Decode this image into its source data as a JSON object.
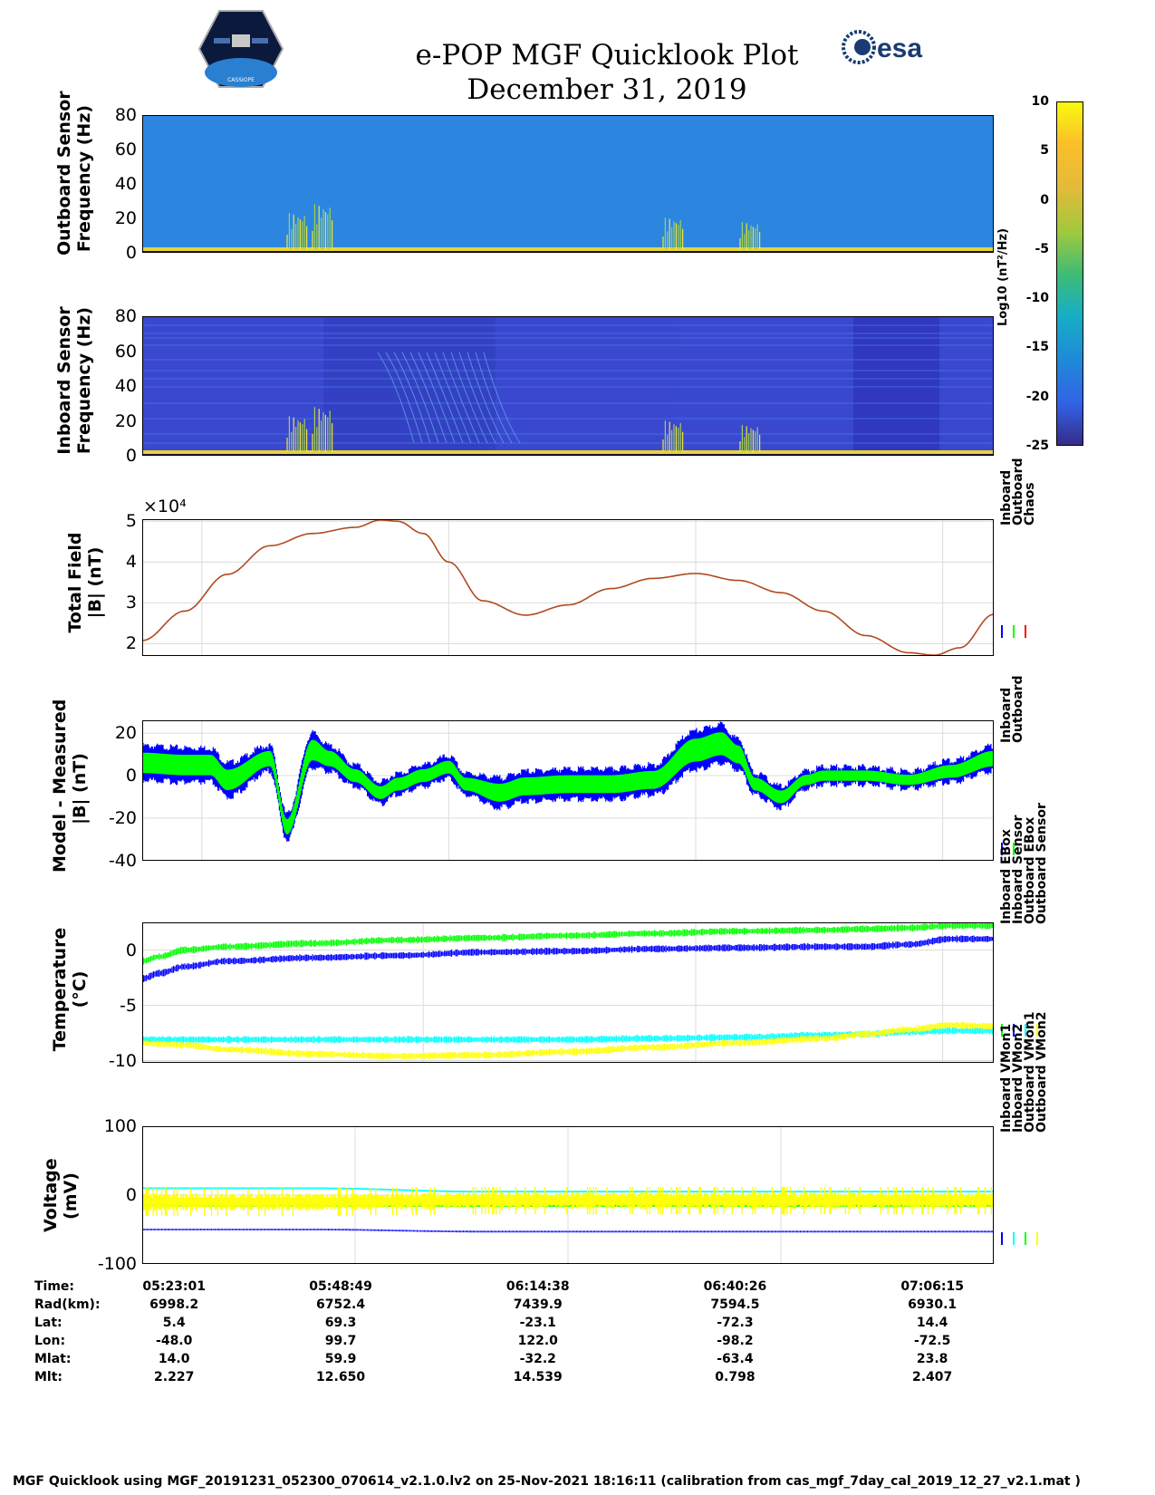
{
  "header": {
    "title_line1": "e-POP MGF Quicklook Plot",
    "title_line2": "December 31, 2019",
    "logo_left_text": "CASSIOPE",
    "logo_right_text": "esa"
  },
  "colorbar": {
    "label": "Log10 (nT²/Hz)",
    "ticks": [
      "10",
      "5",
      "0",
      "-5",
      "-10",
      "-15",
      "-20",
      "-25"
    ],
    "range": [
      -25,
      10
    ]
  },
  "chart_data": [
    {
      "type": "heatmap",
      "name": "outboard-spectrogram",
      "ylabel": [
        "Outboard Sensor",
        "Frequency (Hz)"
      ],
      "y_ticks": [
        "80",
        "60",
        "40",
        "20",
        "0"
      ],
      "ylim": [
        0,
        80
      ]
    },
    {
      "type": "heatmap",
      "name": "inboard-spectrogram",
      "ylabel": [
        "Inboard Sensor",
        "Frequency (Hz)"
      ],
      "y_ticks": [
        "80",
        "60",
        "40",
        "20",
        "0"
      ],
      "ylim": [
        0,
        80
      ]
    },
    {
      "type": "line",
      "name": "total-field",
      "ylabel": [
        "Total Field",
        "|B| (nT)"
      ],
      "exponent_label": "×10⁴",
      "y_ticks": [
        "5",
        "4",
        "3",
        "2"
      ],
      "ylim": [
        1.7,
        5.05
      ],
      "x": [
        0,
        0.05,
        0.1,
        0.15,
        0.2,
        0.25,
        0.28,
        0.3,
        0.33,
        0.36,
        0.4,
        0.45,
        0.5,
        0.55,
        0.6,
        0.65,
        0.7,
        0.75,
        0.8,
        0.85,
        0.9,
        0.93,
        0.96,
        1.0
      ],
      "values": [
        2.08,
        2.8,
        3.7,
        4.4,
        4.7,
        4.85,
        5.03,
        5.0,
        4.7,
        4.0,
        3.05,
        2.7,
        2.95,
        3.35,
        3.6,
        3.72,
        3.55,
        3.25,
        2.8,
        2.2,
        1.78,
        1.72,
        1.9,
        2.72
      ],
      "legend": [
        "Inboard",
        "Outboard",
        "Chaos"
      ],
      "colors": [
        "#0000ff",
        "#00ff00",
        "#ff0000"
      ],
      "line_color": "#b04a1f"
    },
    {
      "type": "line",
      "name": "model-measured",
      "ylabel": [
        "Model - Measured",
        "|B| (nT)"
      ],
      "y_ticks": [
        "20",
        "0",
        "-20",
        "-40"
      ],
      "ylim": [
        -40,
        26
      ],
      "x": [
        0,
        0.05,
        0.08,
        0.1,
        0.15,
        0.17,
        0.2,
        0.22,
        0.25,
        0.28,
        0.3,
        0.33,
        0.36,
        0.38,
        0.42,
        0.45,
        0.5,
        0.55,
        0.6,
        0.65,
        0.68,
        0.7,
        0.72,
        0.75,
        0.78,
        0.8,
        0.85,
        0.9,
        0.95,
        1.0
      ],
      "values": [
        6,
        5,
        5,
        -2,
        8,
        -24,
        12,
        8,
        0,
        -8,
        -4,
        0,
        4,
        -4,
        -8,
        -5,
        -4,
        -4,
        -2,
        12,
        15,
        10,
        -4,
        -10,
        -2,
        0,
        0,
        -2,
        2,
        8
      ],
      "spread": [
        8,
        8,
        8,
        8,
        6,
        6,
        8,
        6,
        5,
        5,
        5,
        5,
        5,
        5,
        7,
        7,
        7,
        7,
        7,
        9,
        9,
        7,
        5,
        5,
        4,
        4,
        4,
        4,
        5,
        6
      ],
      "legend": [
        "Inboard",
        "Outboard"
      ],
      "colors": [
        "#0000ff",
        "#00ff00"
      ]
    },
    {
      "type": "line",
      "name": "temperature",
      "ylabel": [
        "Temperature",
        "(°C)"
      ],
      "y_ticks": [
        "0",
        "-5",
        "-10"
      ],
      "ylim": [
        -10.2,
        2.5
      ],
      "x": [
        0,
        0.02,
        0.05,
        0.1,
        0.2,
        0.3,
        0.4,
        0.5,
        0.6,
        0.7,
        0.8,
        0.85,
        0.9,
        0.95,
        1.0
      ],
      "series": [
        {
          "name": "Inboard EBox",
          "color": "#00ff00",
          "values": [
            -1.0,
            -0.6,
            0.0,
            0.3,
            0.6,
            0.9,
            1.1,
            1.3,
            1.5,
            1.7,
            1.8,
            1.9,
            2.0,
            2.2,
            2.2
          ]
        },
        {
          "name": "Inboard Sensor",
          "color": "#0000ff",
          "values": [
            -2.6,
            -2.1,
            -1.5,
            -1.0,
            -0.7,
            -0.5,
            -0.2,
            -0.1,
            0.1,
            0.2,
            0.3,
            0.3,
            0.5,
            1.0,
            1.0
          ]
        },
        {
          "name": "Outboard EBox",
          "color": "#00ffff",
          "values": [
            -8.1,
            -8.1,
            -8.1,
            -8.1,
            -8.1,
            -8.1,
            -8.1,
            -8.1,
            -8.0,
            -7.9,
            -7.7,
            -7.6,
            -7.4,
            -7.3,
            -7.3
          ]
        },
        {
          "name": "Outboard Sensor",
          "color": "#ffff00",
          "values": [
            -8.4,
            -8.5,
            -8.6,
            -9.0,
            -9.4,
            -9.6,
            -9.5,
            -9.2,
            -8.8,
            -8.4,
            -8.0,
            -7.6,
            -7.2,
            -6.8,
            -6.9
          ]
        }
      ]
    },
    {
      "type": "line",
      "name": "voltage",
      "ylabel": [
        "Voltage",
        "(mV)"
      ],
      "y_ticks": [
        "100",
        "0",
        "-100"
      ],
      "ylim": [
        -100,
        100
      ],
      "series": [
        {
          "name": "Inboard VMon1",
          "color": "#0000ff",
          "values": [
            -50,
            -50,
            -53,
            -53,
            -53,
            -53
          ]
        },
        {
          "name": "Inboard VMon2",
          "color": "#00ffff",
          "values": [
            10,
            10,
            5,
            5,
            5,
            5
          ]
        },
        {
          "name": "Outboard VMon1",
          "color": "#00ff00",
          "values": [
            -15,
            -15,
            -15,
            -15,
            -15,
            -15
          ]
        },
        {
          "name": "Outboard VMon2",
          "color": "#ffff00",
          "values": [
            -10,
            -10,
            -8,
            -8,
            -8,
            -8
          ]
        }
      ],
      "x": [
        0,
        0.2,
        0.4,
        0.6,
        0.8,
        1.0
      ]
    }
  ],
  "orbit_table": {
    "row_labels": [
      "Time:",
      "Rad(km):",
      "Lat:",
      "Lon:",
      "Mlat:",
      "Mlt:"
    ],
    "columns": [
      [
        "05:23:01",
        "6998.2",
        "5.4",
        "-48.0",
        "14.0",
        "2.227"
      ],
      [
        "05:48:49",
        "6752.4",
        "69.3",
        "99.7",
        "59.9",
        "12.650"
      ],
      [
        "06:14:38",
        "7439.9",
        "-23.1",
        "122.0",
        "-32.2",
        "14.539"
      ],
      [
        "06:40:26",
        "7594.5",
        "-72.3",
        "-98.2",
        "-63.4",
        "0.798"
      ],
      [
        "07:06:15",
        "6930.1",
        "14.4",
        "-72.5",
        "23.8",
        "2.407"
      ]
    ]
  },
  "footer": "MGF Quicklook using MGF_20191231_052300_070614_v2.1.0.lv2 on 25-Nov-2021 18:16:11 (calibration from cas_mgf_7day_cal_2019_12_27_v2.1.mat )"
}
